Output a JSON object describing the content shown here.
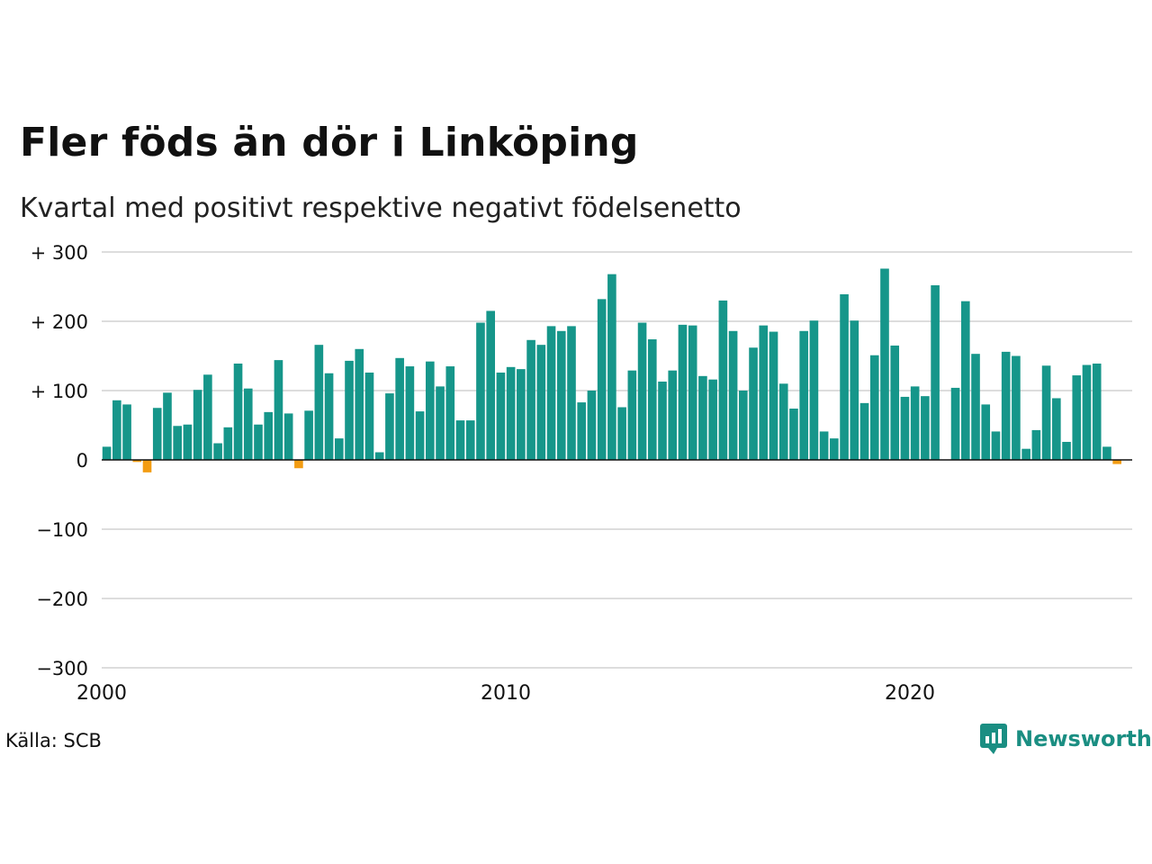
{
  "title": "Fler föds än dör i Linköping",
  "subtitle": "Kvartal med positivt respektive negativt födelsenetto",
  "source": "Källa: SCB",
  "brand": {
    "name": "Newsworthy",
    "icon": "newsworthy-logo-icon",
    "color": "#1a8e82"
  },
  "chart_data": {
    "type": "bar",
    "x_start_year": 2000,
    "periods_per_year": 4,
    "y_ticks": [
      300,
      200,
      100,
      0,
      -100,
      -200,
      -300
    ],
    "y_tick_labels": [
      "+ 300",
      "+ 200",
      "+ 100",
      "0",
      "−100",
      "−200",
      "−300"
    ],
    "x_ticks": [
      2000,
      2010,
      2020
    ],
    "x_tick_labels": [
      "2000",
      "2010",
      "2020"
    ],
    "ylim": [
      -300,
      300
    ],
    "xlim": [
      2000,
      2025.5
    ],
    "grid": true,
    "colors": {
      "positive": "#16968a",
      "negative": "#f39c12",
      "grid": "#dddddd",
      "zero_line": "#111111"
    },
    "values": [
      19,
      86,
      80,
      -3,
      -18,
      75,
      97,
      49,
      51,
      101,
      123,
      24,
      47,
      139,
      103,
      51,
      69,
      144,
      67,
      -12,
      71,
      166,
      125,
      31,
      143,
      160,
      126,
      11,
      96,
      147,
      135,
      70,
      142,
      106,
      135,
      57,
      57,
      198,
      215,
      126,
      134,
      131,
      173,
      166,
      193,
      186,
      193,
      83,
      100,
      232,
      268,
      76,
      129,
      198,
      174,
      113,
      129,
      195,
      194,
      121,
      116,
      230,
      186,
      100,
      162,
      194,
      185,
      110,
      74,
      186,
      201,
      41,
      31,
      239,
      201,
      82,
      151,
      276,
      165,
      91,
      106,
      92,
      252,
      0,
      104,
      229,
      153,
      80,
      41,
      156,
      150,
      16,
      43,
      136,
      89,
      26,
      122,
      137,
      139,
      19,
      -6
    ]
  }
}
